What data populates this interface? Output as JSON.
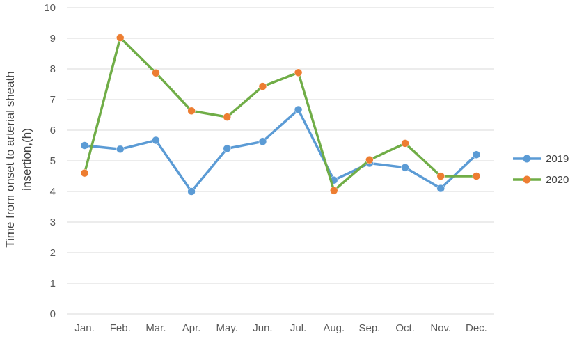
{
  "chart_data": {
    "type": "line",
    "title": "",
    "xlabel": "",
    "ylabel_line1": "Time from onset to arterial sheath",
    "ylabel_line2": "insertion,(h)",
    "ylim": [
      0,
      10
    ],
    "yticks": [
      "0",
      "1",
      "2",
      "3",
      "4",
      "5",
      "6",
      "7",
      "8",
      "9",
      "10"
    ],
    "grid": true,
    "legend_position": "right",
    "categories": [
      "Jan.",
      "Feb.",
      "Mar.",
      "Apr.",
      "May.",
      "Jun.",
      "Jul.",
      "Aug.",
      "Sep.",
      "Oct.",
      "Nov.",
      "Dec."
    ],
    "series": [
      {
        "name": "2019",
        "line_color": "#5b9bd5",
        "marker_color": "#5b9bd5",
        "values": [
          5.5,
          5.38,
          5.67,
          4.0,
          5.4,
          5.63,
          6.67,
          4.37,
          4.92,
          4.78,
          4.1,
          5.2
        ]
      },
      {
        "name": "2020",
        "line_color": "#70ad47",
        "marker_color": "#ed7d31",
        "values": [
          4.6,
          9.02,
          7.87,
          6.63,
          6.43,
          7.43,
          7.88,
          4.03,
          5.03,
          5.57,
          4.5,
          4.5
        ]
      }
    ]
  }
}
